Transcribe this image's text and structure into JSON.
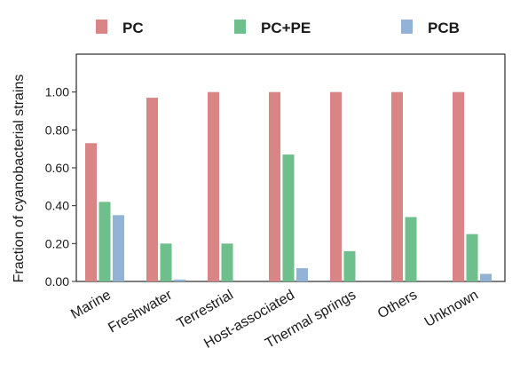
{
  "chart_data": {
    "type": "bar",
    "ylabel": "Fraction of cyanobacterial strains",
    "xlabel": "",
    "ylim": [
      0,
      1.2
    ],
    "yticks": [
      "0.00",
      "0.20",
      "0.40",
      "0.60",
      "0.80",
      "1.00"
    ],
    "categories": [
      "Marine",
      "Freshwater",
      "Terrestrial",
      "Host-associated",
      "Thermal springs",
      "Others",
      "Unknown"
    ],
    "series": [
      {
        "name": "PC",
        "color": "#d98585",
        "values": [
          0.73,
          0.97,
          1.0,
          1.0,
          1.0,
          1.0,
          1.0
        ]
      },
      {
        "name": "PC+PE",
        "color": "#6fbf8c",
        "values": [
          0.42,
          0.2,
          0.2,
          0.67,
          0.16,
          0.34,
          0.25
        ]
      },
      {
        "name": "PCB",
        "color": "#92b3d5",
        "values": [
          0.35,
          0.01,
          0.0,
          0.07,
          0.0,
          0.0,
          0.04
        ]
      }
    ],
    "legend_position": "top",
    "grid": false
  }
}
